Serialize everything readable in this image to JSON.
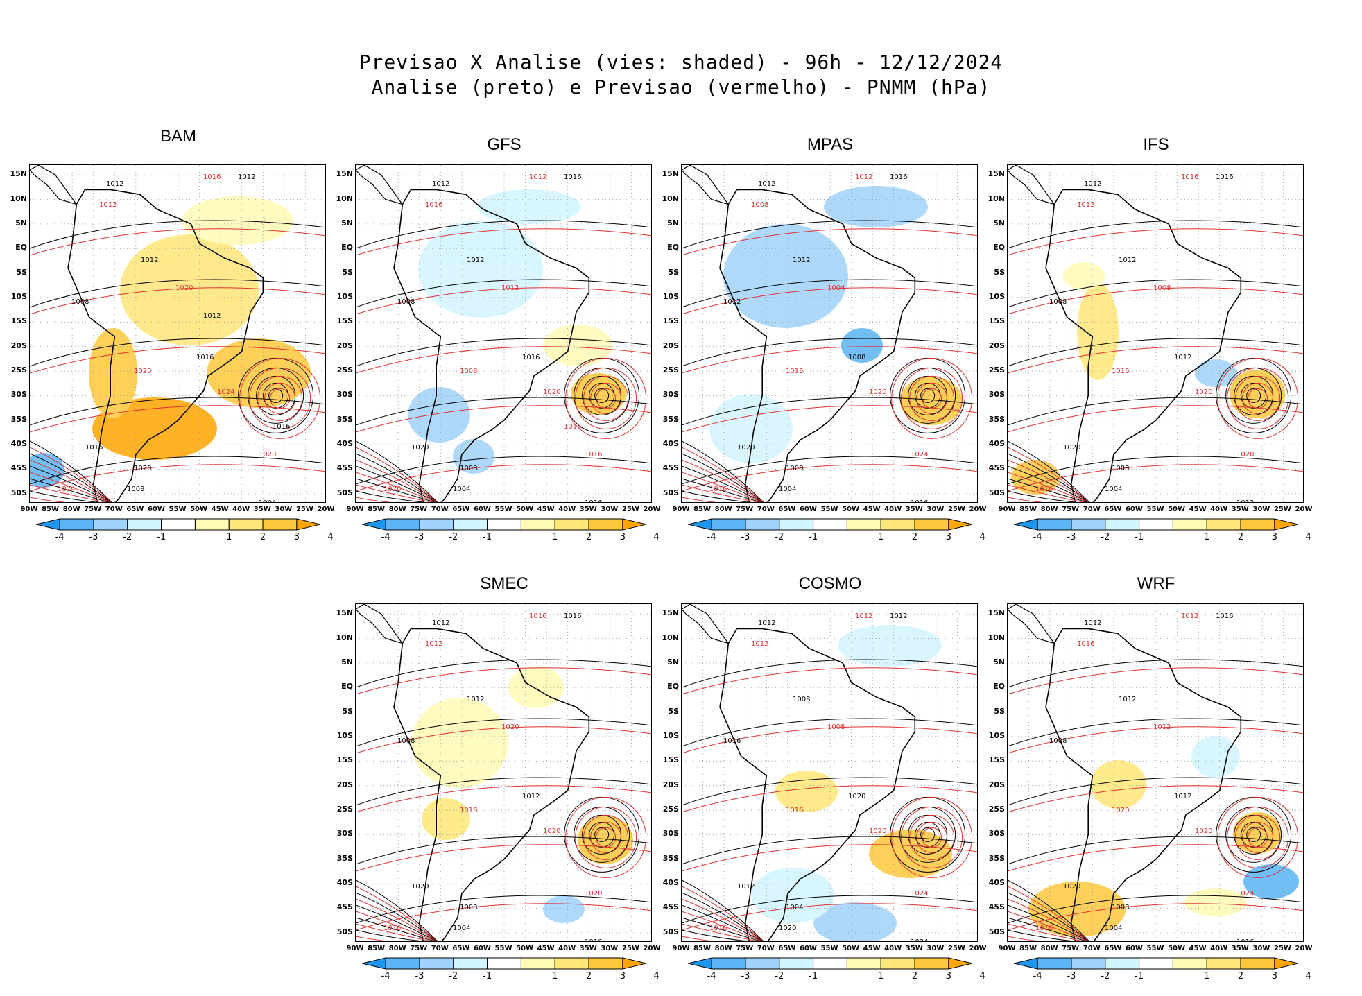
{
  "header": {
    "line1": "Previsao X Analise (vies: shaded) - 96h - 12/12/2024",
    "line2": "Analise (preto) e Previsao (vermelho) - PNMM (hPa)"
  },
  "axes": {
    "lat_labels": [
      "15N",
      "10N",
      "5N",
      "EQ",
      "5S",
      "10S",
      "15S",
      "20S",
      "25S",
      "30S",
      "35S",
      "40S",
      "45S",
      "50S"
    ],
    "lon_labels": [
      "90W",
      "85W",
      "80W",
      "75W",
      "70W",
      "65W",
      "60W",
      "55W",
      "50W",
      "45W",
      "40W",
      "35W",
      "30W",
      "25W",
      "20W"
    ]
  },
  "colorbar": {
    "labels": [
      "-4",
      "-3",
      "-2",
      "-1",
      "1",
      "2",
      "3",
      "4"
    ],
    "colors": {
      "neg4": "#1e96f0",
      "neg3": "#5ab4f5",
      "neg2": "#a0d2fa",
      "neg1": "#d2f5ff",
      "zero": "#ffffff",
      "pos1": "#fffab4",
      "pos2": "#ffe678",
      "pos3": "#ffc83c",
      "pos4": "#ffa500"
    }
  },
  "contour_colors": {
    "analysis": "#000000",
    "forecast": "#e03030"
  },
  "panels": [
    {
      "name": "BAM",
      "bias_mode": "warm",
      "contour_labels": {
        "analysis": [
          "1012",
          "1012",
          "1012",
          "1008",
          "1016",
          "1016",
          "1020",
          "1008",
          "1004",
          "1016",
          "1012"
        ],
        "forecast": [
          "1016",
          "1012",
          "1020",
          "1020",
          "1024",
          "1020",
          "1024"
        ]
      }
    },
    {
      "name": "GFS",
      "bias_mode": "cool",
      "contour_labels": {
        "analysis": [
          "1012",
          "1016",
          "1012",
          "1008",
          "1016",
          "1020",
          "1008",
          "1004",
          "1016"
        ],
        "forecast": [
          "1012",
          "1016",
          "1012",
          "1008",
          "1020",
          "1016",
          "1020",
          "1016"
        ]
      }
    },
    {
      "name": "MPAS",
      "bias_mode": "cool-strong",
      "contour_labels": {
        "analysis": [
          "1012",
          "1016",
          "1012",
          "1012",
          "1008",
          "1020",
          "1008",
          "1004",
          "1016"
        ],
        "forecast": [
          "1012",
          "1008",
          "1004",
          "1016",
          "1020",
          "1024",
          "1016"
        ]
      }
    },
    {
      "name": "IFS",
      "bias_mode": "neutral",
      "contour_labels": {
        "analysis": [
          "1012",
          "1016",
          "1012",
          "1008",
          "1012",
          "1020",
          "1008",
          "1004",
          "1012"
        ],
        "forecast": [
          "1016",
          "1012",
          "1008",
          "1016",
          "1020",
          "1020",
          "1016"
        ]
      }
    },
    {
      "name": "SMEC",
      "bias_mode": "mixed",
      "contour_labels": {
        "analysis": [
          "1012",
          "1016",
          "1012",
          "1008",
          "1012",
          "1020",
          "1008",
          "1004",
          "1016"
        ],
        "forecast": [
          "1016",
          "1012",
          "1020",
          "1016",
          "1020",
          "1020",
          "1016"
        ]
      }
    },
    {
      "name": "COSMO",
      "bias_mode": "cosmo",
      "contour_labels": {
        "analysis": [
          "1012",
          "1012",
          "1008",
          "1016",
          "1020",
          "1012",
          "1004",
          "1020",
          "1024"
        ],
        "forecast": [
          "1012",
          "1012",
          "1008",
          "1016",
          "1020",
          "1024",
          "1016"
        ]
      }
    },
    {
      "name": "WRF",
      "bias_mode": "wrf",
      "contour_labels": {
        "analysis": [
          "1012",
          "1016",
          "1012",
          "1008",
          "1012",
          "1020",
          "1008",
          "1004",
          "1016"
        ],
        "forecast": [
          "1012",
          "1016",
          "1012",
          "1020",
          "1020",
          "1024",
          "1016"
        ]
      }
    }
  ],
  "chart_data": [
    {
      "type": "heatmap",
      "title": "BAM",
      "value_unit": "hPa",
      "x_range": [
        "90W",
        "20W"
      ],
      "y_range": [
        "52S",
        "17N"
      ],
      "colorbar_ticks": [
        -4,
        -3,
        -2,
        -1,
        1,
        2,
        3,
        4
      ],
      "contour_levels": [
        1004,
        1008,
        1012,
        1016,
        1020,
        1024
      ]
    },
    {
      "type": "heatmap",
      "title": "GFS",
      "value_unit": "hPa",
      "x_range": [
        "90W",
        "20W"
      ],
      "y_range": [
        "52S",
        "17N"
      ],
      "colorbar_ticks": [
        -4,
        -3,
        -2,
        -1,
        1,
        2,
        3,
        4
      ],
      "contour_levels": [
        1004,
        1008,
        1012,
        1016,
        1020,
        1024
      ]
    },
    {
      "type": "heatmap",
      "title": "MPAS",
      "value_unit": "hPa",
      "x_range": [
        "90W",
        "20W"
      ],
      "y_range": [
        "52S",
        "17N"
      ],
      "colorbar_ticks": [
        -4,
        -3,
        -2,
        -1,
        1,
        2,
        3,
        4
      ],
      "contour_levels": [
        1004,
        1008,
        1012,
        1016,
        1020,
        1024
      ]
    },
    {
      "type": "heatmap",
      "title": "IFS",
      "value_unit": "hPa",
      "x_range": [
        "90W",
        "20W"
      ],
      "y_range": [
        "52S",
        "17N"
      ],
      "colorbar_ticks": [
        -4,
        -3,
        -2,
        -1,
        1,
        2,
        3,
        4
      ],
      "contour_levels": [
        1004,
        1008,
        1012,
        1016,
        1020,
        1024
      ]
    },
    {
      "type": "heatmap",
      "title": "SMEC",
      "value_unit": "hPa",
      "x_range": [
        "90W",
        "20W"
      ],
      "y_range": [
        "52S",
        "17N"
      ],
      "colorbar_ticks": [
        -4,
        -3,
        -2,
        -1,
        1,
        2,
        3,
        4
      ],
      "contour_levels": [
        1004,
        1008,
        1012,
        1016,
        1020,
        1024
      ]
    },
    {
      "type": "heatmap",
      "title": "COSMO",
      "value_unit": "hPa",
      "x_range": [
        "90W",
        "20W"
      ],
      "y_range": [
        "52S",
        "17N"
      ],
      "colorbar_ticks": [
        -4,
        -3,
        -2,
        -1,
        1,
        2,
        3,
        4
      ],
      "contour_levels": [
        1004,
        1008,
        1012,
        1016,
        1020,
        1024
      ]
    },
    {
      "type": "heatmap",
      "title": "WRF",
      "value_unit": "hPa",
      "x_range": [
        "90W",
        "20W"
      ],
      "y_range": [
        "52S",
        "17N"
      ],
      "colorbar_ticks": [
        -4,
        -3,
        -2,
        -1,
        1,
        2,
        3,
        4
      ],
      "contour_levels": [
        1004,
        1008,
        1012,
        1016,
        1020,
        1024
      ]
    }
  ]
}
